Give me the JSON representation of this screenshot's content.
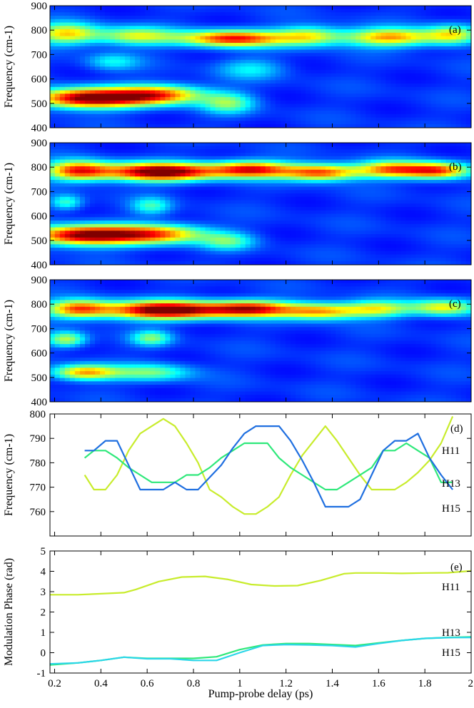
{
  "chart_data": [
    {
      "type": "heatmap",
      "panel": "(a)",
      "ylabel": "Frequency (cm-1)",
      "xlim": [
        0.18,
        2.0
      ],
      "ylim": [
        400,
        900
      ],
      "yticks": [
        "400",
        "500",
        "600",
        "700",
        "800",
        "900"
      ],
      "colormap": "jet",
      "blobs": [
        {
          "t": 0.35,
          "f": 520,
          "st": 0.17,
          "sf": 28,
          "a": 0.95
        },
        {
          "t": 0.65,
          "f": 535,
          "st": 0.14,
          "sf": 28,
          "a": 0.65
        },
        {
          "t": 0.95,
          "f": 500,
          "st": 0.08,
          "sf": 30,
          "a": 0.35
        },
        {
          "t": 0.25,
          "f": 785,
          "st": 0.1,
          "sf": 30,
          "a": 0.55
        },
        {
          "t": 0.55,
          "f": 775,
          "st": 0.12,
          "sf": 26,
          "a": 0.45
        },
        {
          "t": 0.97,
          "f": 765,
          "st": 0.16,
          "sf": 24,
          "a": 0.78
        },
        {
          "t": 1.3,
          "f": 775,
          "st": 0.1,
          "sf": 28,
          "a": 0.45
        },
        {
          "t": 1.65,
          "f": 770,
          "st": 0.14,
          "sf": 26,
          "a": 0.62
        },
        {
          "t": 1.92,
          "f": 780,
          "st": 0.08,
          "sf": 28,
          "a": 0.45
        },
        {
          "t": 0.45,
          "f": 670,
          "st": 0.08,
          "sf": 25,
          "a": 0.22
        },
        {
          "t": 1.05,
          "f": 640,
          "st": 0.1,
          "sf": 30,
          "a": 0.2
        }
      ]
    },
    {
      "type": "heatmap",
      "panel": "(b)",
      "ylabel": "Frequency (cm-1)",
      "xlim": [
        0.18,
        2.0
      ],
      "ylim": [
        400,
        900
      ],
      "yticks": [
        "400",
        "500",
        "600",
        "700",
        "800",
        "900"
      ],
      "colormap": "jet",
      "blobs": [
        {
          "t": 0.33,
          "f": 520,
          "st": 0.17,
          "sf": 28,
          "a": 0.92
        },
        {
          "t": 0.65,
          "f": 525,
          "st": 0.15,
          "sf": 28,
          "a": 0.6
        },
        {
          "t": 0.95,
          "f": 495,
          "st": 0.08,
          "sf": 25,
          "a": 0.3
        },
        {
          "t": 0.3,
          "f": 785,
          "st": 0.1,
          "sf": 28,
          "a": 0.72
        },
        {
          "t": 0.66,
          "f": 780,
          "st": 0.17,
          "sf": 26,
          "a": 1.0
        },
        {
          "t": 1.05,
          "f": 790,
          "st": 0.12,
          "sf": 24,
          "a": 0.75
        },
        {
          "t": 1.35,
          "f": 778,
          "st": 0.12,
          "sf": 24,
          "a": 0.72
        },
        {
          "t": 1.65,
          "f": 790,
          "st": 0.1,
          "sf": 24,
          "a": 0.6
        },
        {
          "t": 1.85,
          "f": 785,
          "st": 0.1,
          "sf": 24,
          "a": 0.72
        },
        {
          "t": 0.25,
          "f": 655,
          "st": 0.05,
          "sf": 22,
          "a": 0.3
        },
        {
          "t": 0.62,
          "f": 640,
          "st": 0.06,
          "sf": 25,
          "a": 0.28
        }
      ]
    },
    {
      "type": "heatmap",
      "panel": "(c)",
      "ylabel": "Frequency (cm-1)",
      "xlim": [
        0.18,
        2.0
      ],
      "ylim": [
        400,
        900
      ],
      "yticks": [
        "400",
        "500",
        "600",
        "700",
        "800",
        "900"
      ],
      "colormap": "jet",
      "blobs": [
        {
          "t": 0.33,
          "f": 520,
          "st": 0.1,
          "sf": 22,
          "a": 0.6
        },
        {
          "t": 0.62,
          "f": 520,
          "st": 0.12,
          "sf": 25,
          "a": 0.35
        },
        {
          "t": 0.3,
          "f": 780,
          "st": 0.1,
          "sf": 26,
          "a": 0.65
        },
        {
          "t": 0.68,
          "f": 775,
          "st": 0.18,
          "sf": 26,
          "a": 1.0
        },
        {
          "t": 1.05,
          "f": 780,
          "st": 0.13,
          "sf": 24,
          "a": 0.75
        },
        {
          "t": 1.35,
          "f": 770,
          "st": 0.12,
          "sf": 24,
          "a": 0.6
        },
        {
          "t": 1.6,
          "f": 780,
          "st": 0.1,
          "sf": 24,
          "a": 0.45
        },
        {
          "t": 1.88,
          "f": 785,
          "st": 0.1,
          "sf": 24,
          "a": 0.5
        },
        {
          "t": 0.25,
          "f": 655,
          "st": 0.06,
          "sf": 22,
          "a": 0.45
        },
        {
          "t": 0.62,
          "f": 660,
          "st": 0.06,
          "sf": 22,
          "a": 0.35
        }
      ]
    },
    {
      "type": "line",
      "panel": "(d)",
      "ylabel": "Frequency (cm-1)",
      "xlim": [
        0.18,
        2.0
      ],
      "ylim": [
        750,
        800
      ],
      "yticks": [
        "760",
        "770",
        "780",
        "790",
        "800"
      ],
      "series": [
        {
          "name": "H11",
          "color": "#c8ec2c",
          "x": [
            0.33,
            0.37,
            0.42,
            0.47,
            0.52,
            0.57,
            0.62,
            0.67,
            0.72,
            0.77,
            0.82,
            0.87,
            0.92,
            0.97,
            1.02,
            1.07,
            1.12,
            1.17,
            1.22,
            1.27,
            1.32,
            1.37,
            1.42,
            1.47,
            1.52,
            1.57,
            1.62,
            1.67,
            1.72,
            1.77,
            1.82,
            1.87,
            1.92
          ],
          "y": [
            775,
            769,
            769,
            775,
            785,
            792,
            795,
            798,
            795,
            788,
            780,
            769,
            766,
            762,
            759,
            759,
            762,
            766,
            775,
            783,
            789,
            795,
            789,
            782,
            775,
            769,
            769,
            769,
            772,
            776,
            781,
            788,
            799
          ]
        },
        {
          "name": "H13",
          "color": "#2ee87a",
          "x": [
            0.33,
            0.37,
            0.42,
            0.47,
            0.52,
            0.57,
            0.62,
            0.67,
            0.72,
            0.77,
            0.82,
            0.87,
            0.92,
            0.97,
            1.02,
            1.07,
            1.12,
            1.17,
            1.22,
            1.27,
            1.32,
            1.37,
            1.42,
            1.47,
            1.52,
            1.57,
            1.62,
            1.67,
            1.72,
            1.77,
            1.82,
            1.87,
            1.92
          ],
          "y": [
            782,
            785,
            785,
            782,
            778,
            775,
            772,
            772,
            772,
            775,
            775,
            778,
            782,
            785,
            788,
            788,
            788,
            782,
            778,
            775,
            772,
            769,
            769,
            772,
            775,
            778,
            785,
            785,
            788,
            785,
            782,
            772,
            772
          ]
        },
        {
          "name": "H15",
          "color": "#1f6fe0",
          "x": [
            0.33,
            0.37,
            0.42,
            0.47,
            0.52,
            0.57,
            0.62,
            0.67,
            0.72,
            0.77,
            0.82,
            0.87,
            0.92,
            0.97,
            1.02,
            1.07,
            1.12,
            1.17,
            1.22,
            1.27,
            1.32,
            1.37,
            1.42,
            1.47,
            1.52,
            1.57,
            1.62,
            1.67,
            1.72,
            1.77,
            1.82,
            1.87,
            1.92
          ],
          "y": [
            785,
            785,
            789,
            789,
            779,
            769,
            769,
            769,
            772,
            769,
            769,
            774,
            779,
            786,
            792,
            795,
            795,
            795,
            789,
            781,
            772,
            762,
            762,
            762,
            765,
            775,
            785,
            789,
            789,
            792,
            782,
            775,
            769
          ]
        }
      ]
    },
    {
      "type": "line",
      "panel": "(e)",
      "ylabel": "Modulation Phase (rad)",
      "xlabel": "Pump-probe delay (ps)",
      "xlim": [
        0.18,
        2.0
      ],
      "ylim": [
        -1,
        5
      ],
      "yticks": [
        "-1",
        "0",
        "1",
        "2",
        "3",
        "4",
        "5"
      ],
      "xticks": [
        "0.2",
        "0.4",
        "0.6",
        "0.8",
        "1",
        "1.2",
        "1.4",
        "1.6",
        "1.8",
        "2"
      ],
      "series": [
        {
          "name": "H11",
          "color": "#c8ec2c",
          "x": [
            0.18,
            0.3,
            0.4,
            0.5,
            0.55,
            0.65,
            0.75,
            0.85,
            0.95,
            1.05,
            1.15,
            1.25,
            1.35,
            1.45,
            1.5,
            1.6,
            1.7,
            1.8,
            1.9,
            2.0
          ],
          "y": [
            2.85,
            2.85,
            2.9,
            2.95,
            3.1,
            3.5,
            3.72,
            3.75,
            3.6,
            3.35,
            3.28,
            3.3,
            3.55,
            3.88,
            3.92,
            3.92,
            3.9,
            3.92,
            3.93,
            4.02
          ]
        },
        {
          "name": "H13",
          "color": "#2ee87a",
          "x": [
            0.18,
            0.3,
            0.4,
            0.5,
            0.6,
            0.7,
            0.8,
            0.9,
            1.0,
            1.1,
            1.2,
            1.3,
            1.4,
            1.5,
            1.6,
            1.7,
            1.8,
            1.9,
            2.0
          ],
          "y": [
            -0.6,
            -0.5,
            -0.38,
            -0.22,
            -0.28,
            -0.28,
            -0.28,
            -0.2,
            0.15,
            0.38,
            0.45,
            0.45,
            0.4,
            0.35,
            0.48,
            0.6,
            0.7,
            0.75,
            0.78
          ]
        },
        {
          "name": "H15",
          "color": "#2ad6e8",
          "x": [
            0.18,
            0.3,
            0.4,
            0.5,
            0.6,
            0.7,
            0.8,
            0.9,
            1.0,
            1.1,
            1.2,
            1.3,
            1.4,
            1.5,
            1.6,
            1.7,
            1.8,
            1.9,
            2.0
          ],
          "y": [
            -0.55,
            -0.5,
            -0.38,
            -0.22,
            -0.3,
            -0.3,
            -0.38,
            -0.38,
            0.0,
            0.35,
            0.4,
            0.38,
            0.35,
            0.28,
            0.45,
            0.6,
            0.7,
            0.74,
            0.75
          ]
        }
      ]
    }
  ]
}
